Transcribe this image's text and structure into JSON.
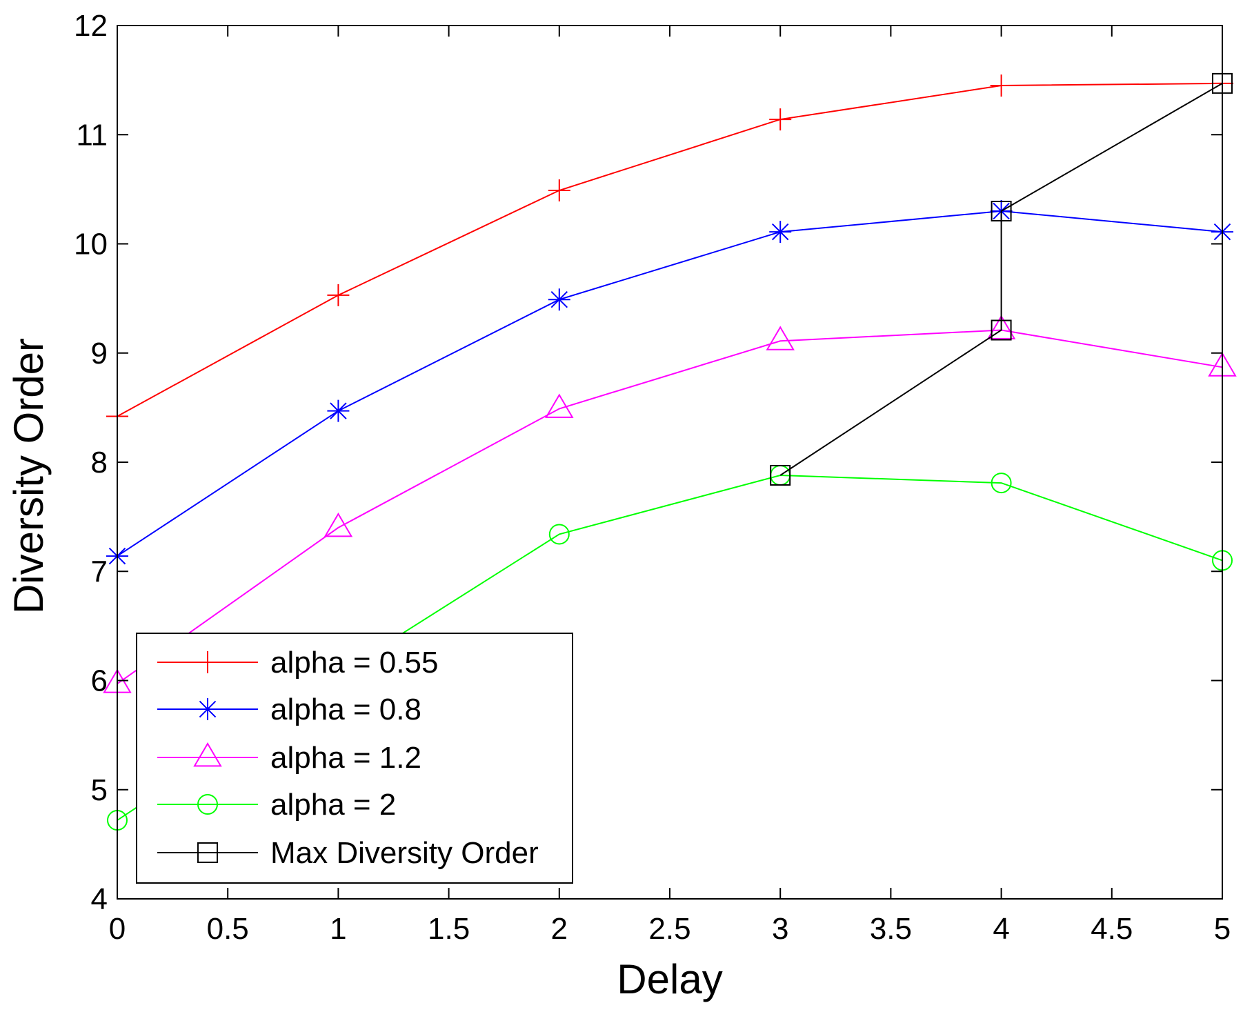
{
  "chart_data": {
    "type": "line",
    "xlabel": "Delay",
    "ylabel": "Diversity Order",
    "xlim": [
      0,
      5
    ],
    "ylim": [
      4,
      12
    ],
    "xticks": [
      0,
      0.5,
      1,
      1.5,
      2,
      2.5,
      3,
      3.5,
      4,
      4.5,
      5
    ],
    "xtick_labels": [
      "0",
      "0.5",
      "1",
      "1.5",
      "2",
      "2.5",
      "3",
      "3.5",
      "4",
      "4.5",
      "5"
    ],
    "yticks": [
      4,
      5,
      6,
      7,
      8,
      9,
      10,
      11,
      12
    ],
    "ytick_labels": [
      "4",
      "5",
      "6",
      "7",
      "8",
      "9",
      "10",
      "11",
      "12"
    ],
    "grid": false,
    "legend_position": "bottom-left",
    "series": [
      {
        "name": "alpha = 0.55",
        "color": "#ff0000",
        "marker": "plus",
        "x": [
          0,
          1,
          2,
          3,
          4,
          5
        ],
        "y": [
          8.42,
          9.53,
          10.49,
          11.14,
          11.45,
          11.47
        ]
      },
      {
        "name": "alpha = 0.8",
        "color": "#0000ff",
        "marker": "asterisk",
        "x": [
          0,
          1,
          2,
          3,
          4,
          5
        ],
        "y": [
          7.14,
          8.47,
          9.49,
          10.11,
          10.3,
          10.11
        ]
      },
      {
        "name": "alpha = 1.2",
        "color": "#ff00ff",
        "marker": "triangle",
        "x": [
          0,
          1,
          2,
          3,
          4,
          5
        ],
        "y": [
          5.97,
          7.4,
          8.49,
          9.11,
          9.21,
          8.87
        ]
      },
      {
        "name": "alpha = 2",
        "color": "#00ff00",
        "marker": "circle",
        "x": [
          0,
          1,
          2,
          3,
          4,
          5
        ],
        "y": [
          4.72,
          6.06,
          7.34,
          7.88,
          7.81,
          7.1
        ]
      },
      {
        "name": "Max Diversity Order",
        "color": "#000000",
        "marker": "square",
        "x": [
          3,
          4,
          4,
          5
        ],
        "y": [
          7.88,
          9.21,
          10.3,
          11.47
        ]
      }
    ]
  }
}
